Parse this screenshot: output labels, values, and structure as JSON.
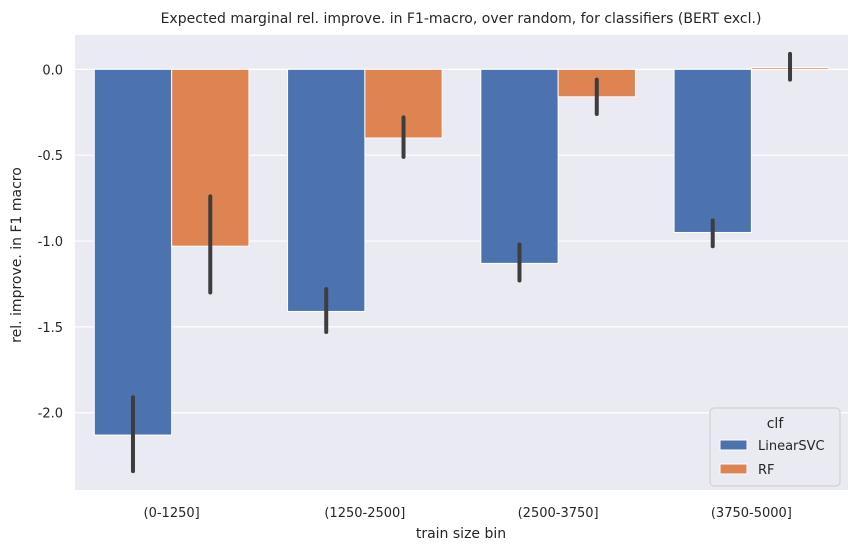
{
  "chart_data": {
    "type": "bar",
    "title": "Expected marginal rel. improve. in F1-macro, over random, for classifiers (BERT excl.)",
    "xlabel": "train size bin",
    "ylabel": "rel. improve. in F1 macro",
    "categories": [
      "(0-1250]",
      "(1250-2500]",
      "(2500-3750]",
      "(3750-5000]"
    ],
    "ylim": [
      -2.45,
      0.2
    ],
    "yticks": [
      0.0,
      -0.5,
      -1.0,
      -1.5,
      -2.0
    ],
    "ytick_labels": [
      "0.0",
      "-0.5",
      "-1.0",
      "-1.5",
      "-2.0"
    ],
    "grid": true,
    "legend": {
      "title": "clf",
      "position": "lower-right"
    },
    "series": [
      {
        "name": "LinearSVC",
        "color": "#4c72b0",
        "values": [
          -2.13,
          -1.41,
          -1.13,
          -0.95
        ],
        "ci_low": [
          -2.34,
          -1.53,
          -1.23,
          -1.03
        ],
        "ci_high": [
          -1.91,
          -1.28,
          -1.02,
          -0.88
        ]
      },
      {
        "name": "RF",
        "color": "#dd8452",
        "values": [
          -1.03,
          -0.4,
          -0.16,
          0.01
        ],
        "ci_low": [
          -1.3,
          -0.51,
          -0.26,
          -0.06
        ],
        "ci_high": [
          -0.74,
          -0.28,
          -0.06,
          0.09
        ]
      }
    ],
    "background_color": "#eaeaf2",
    "errorbar_color": "#3d3d3d"
  }
}
